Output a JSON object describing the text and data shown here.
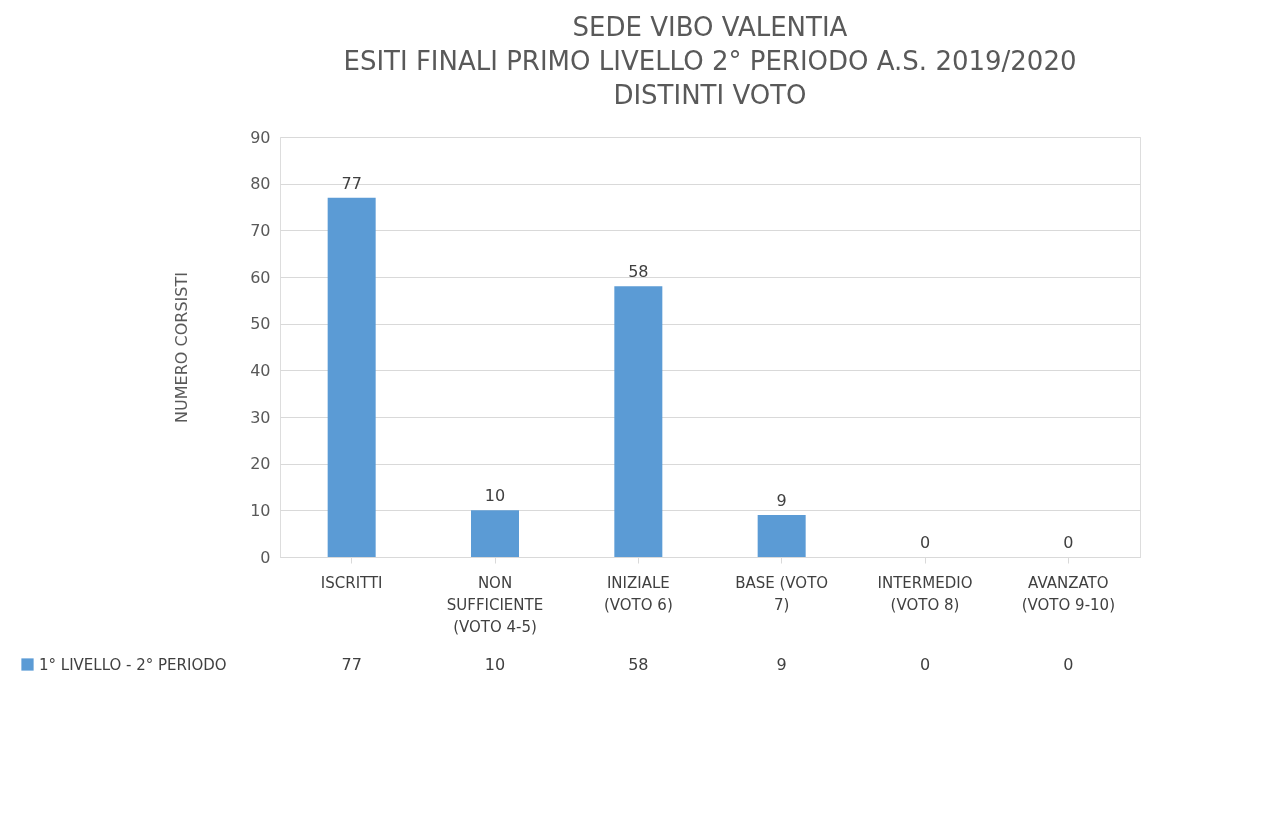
{
  "chart_data": {
    "type": "bar",
    "title": "SEDE VIBO VALENTIA\nESITI FINALI PRIMO LIVELLO 2° PERIODO A.S. 2019/2020\nDISTINTI VOTO",
    "ylabel": "NUMERO CORSISTI",
    "categories": [
      "ISCRITTI",
      "NON SUFFICIENTE (VOTO 4-5)",
      "INIZIALE (VOTO 6)",
      "BASE (VOTO 7)",
      "INTERMEDIO (VOTO 8)",
      "AVANZATO (VOTO 9-10)"
    ],
    "series": [
      {
        "name": "1° LIVELLO - 2° PERIODO",
        "color": "#5b9bd5",
        "values": [
          77,
          10,
          58,
          9,
          0,
          0
        ],
        "value_labels": [
          "77",
          "10",
          "58",
          "9",
          "0",
          "0"
        ]
      }
    ],
    "ylim": [
      0,
      90
    ],
    "yticks": [
      0,
      10,
      20,
      30,
      40,
      50,
      60,
      70,
      80,
      90
    ],
    "grid": "y",
    "data_labels": true,
    "legend": "bottom left"
  }
}
